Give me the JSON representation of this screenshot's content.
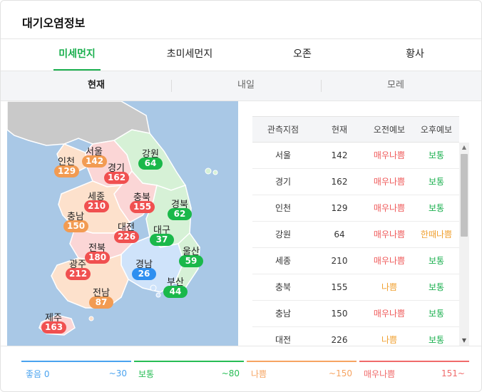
{
  "header": {
    "title": "대기오염정보"
  },
  "tabs": [
    {
      "label": "미세먼지",
      "active": true
    },
    {
      "label": "초미세먼지",
      "active": false
    },
    {
      "label": "오존",
      "active": false
    },
    {
      "label": "황사",
      "active": false
    }
  ],
  "subtabs": [
    {
      "label": "현재",
      "active": true
    },
    {
      "label": "내일",
      "active": false
    },
    {
      "label": "모레",
      "active": false
    }
  ],
  "colors": {
    "good": "#2e8ff0",
    "normal": "#1ab84a",
    "bad": "#f29b52",
    "very_bad": "#f05050",
    "accent": "#1aaf4e"
  },
  "map": {
    "regions": [
      {
        "name": "서울",
        "value": "142",
        "grade": "bad"
      },
      {
        "name": "인천",
        "value": "129",
        "grade": "bad"
      },
      {
        "name": "경기",
        "value": "162",
        "grade": "very_bad"
      },
      {
        "name": "강원",
        "value": "64",
        "grade": "normal"
      },
      {
        "name": "세종",
        "value": "210",
        "grade": "very_bad"
      },
      {
        "name": "충북",
        "value": "155",
        "grade": "very_bad"
      },
      {
        "name": "경북",
        "value": "62",
        "grade": "normal"
      },
      {
        "name": "충남",
        "value": "150",
        "grade": "bad"
      },
      {
        "name": "대전",
        "value": "226",
        "grade": "very_bad"
      },
      {
        "name": "대구",
        "value": "37",
        "grade": "normal"
      },
      {
        "name": "전북",
        "value": "180",
        "grade": "very_bad"
      },
      {
        "name": "울산",
        "value": "59",
        "grade": "normal"
      },
      {
        "name": "경남",
        "value": "26",
        "grade": "good"
      },
      {
        "name": "광주",
        "value": "212",
        "grade": "very_bad"
      },
      {
        "name": "부산",
        "value": "44",
        "grade": "normal"
      },
      {
        "name": "전남",
        "value": "87",
        "grade": "bad"
      },
      {
        "name": "제주",
        "value": "163",
        "grade": "very_bad"
      }
    ]
  },
  "table": {
    "headers": [
      "관측지점",
      "현재",
      "오전예보",
      "오후예보"
    ],
    "rows": [
      {
        "site": "서울",
        "now": "142",
        "am": "매우나쁨",
        "pm": "보통"
      },
      {
        "site": "경기",
        "now": "162",
        "am": "매우나쁨",
        "pm": "보통"
      },
      {
        "site": "인천",
        "now": "129",
        "am": "매우나쁨",
        "pm": "보통"
      },
      {
        "site": "강원",
        "now": "64",
        "am": "매우나쁨",
        "pm": "한때나쁨"
      },
      {
        "site": "세종",
        "now": "210",
        "am": "매우나쁨",
        "pm": "보통"
      },
      {
        "site": "충북",
        "now": "155",
        "am": "나쁨",
        "pm": "보통"
      },
      {
        "site": "충남",
        "now": "150",
        "am": "매우나쁨",
        "pm": "보통"
      },
      {
        "site": "대전",
        "now": "226",
        "am": "나쁨",
        "pm": "보통"
      }
    ]
  },
  "scrollbar": {
    "up_icon": "▲",
    "down_icon": "▼"
  },
  "legend": [
    {
      "name": "좋음 0",
      "range": "~30",
      "color": "#4aa3ef"
    },
    {
      "name": "보통",
      "range": "~80",
      "color": "#27bd55"
    },
    {
      "name": "나쁨",
      "range": "~150",
      "color": "#f6a462"
    },
    {
      "name": "매우나쁨",
      "range": "151~",
      "color": "#f06a6a"
    }
  ]
}
